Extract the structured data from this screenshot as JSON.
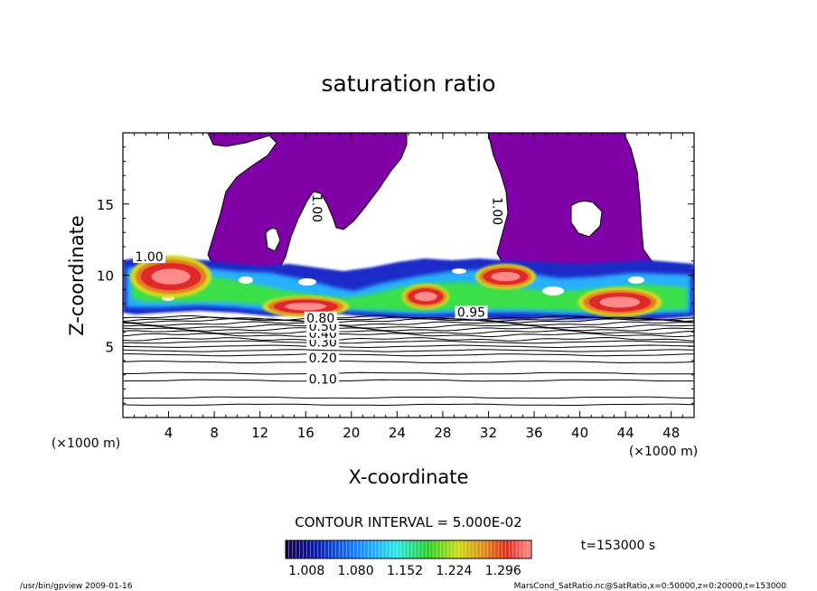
{
  "chart_data": {
    "type": "heatmap",
    "title": "saturation ratio",
    "xlabel": "X-coordinate",
    "ylabel": "Z-coordinate",
    "x_unit": "(×1000 m)",
    "y_unit": "(×1000 m)",
    "xlim": [
      0,
      50
    ],
    "ylim": [
      0,
      20
    ],
    "x_ticks": [
      4,
      8,
      12,
      16,
      20,
      24,
      28,
      32,
      36,
      40,
      44,
      48
    ],
    "y_ticks": [
      5,
      10,
      15
    ],
    "contour_interval_text": "CONTOUR INTERVAL = 5.000E-02",
    "time_text": "t=153000 s",
    "colorbar_labels": [
      "1.008",
      "1.080",
      "1.152",
      "1.224",
      "1.296"
    ],
    "contour_labels": [
      {
        "text": "0.10",
        "x": 17.5,
        "z": 2.7
      },
      {
        "text": "0.20",
        "x": 17.5,
        "z": 4.2
      },
      {
        "text": "0.30",
        "x": 17.5,
        "z": 5.3
      },
      {
        "text": "0.40",
        "x": 17.5,
        "z": 5.9
      },
      {
        "text": "0.50",
        "x": 17.5,
        "z": 6.4
      },
      {
        "text": "0.80",
        "x": 17.3,
        "z": 7.0
      },
      {
        "text": "1.00",
        "x": 17.0,
        "z": 14.7
      },
      {
        "text": "1.00",
        "x": 32.8,
        "z": 14.5
      },
      {
        "text": "1.00",
        "x": 2.3,
        "z": 11.3
      },
      {
        "text": "0.95",
        "x": 30.5,
        "z": 7.4
      }
    ],
    "background_contour_levels_z": [
      0.9,
      1.4,
      2.6,
      3.1,
      3.9,
      4.4,
      4.7,
      5.0,
      5.3,
      5.5,
      5.8,
      6.0,
      6.2,
      6.4,
      6.6,
      6.8,
      6.9,
      7.0
    ],
    "supersaturated_regions": [
      {
        "x": 4.2,
        "z": 9.9,
        "rx": 3.1,
        "rz": 1.0,
        "level": 1.26
      },
      {
        "x": 16.0,
        "z": 7.8,
        "rx": 3.3,
        "rz": 0.5,
        "level": 1.29
      },
      {
        "x": 26.5,
        "z": 8.5,
        "rx": 1.8,
        "rz": 0.6,
        "level": 1.24
      },
      {
        "x": 33.5,
        "z": 9.9,
        "rx": 2.3,
        "rz": 0.6,
        "level": 1.27
      },
      {
        "x": 43.5,
        "z": 8.1,
        "rx": 3.2,
        "rz": 0.7,
        "level": 1.3
      }
    ],
    "footer_left": "/usr/bin/gpview  2009-01-16",
    "footer_right": "MarsCond_SatRatio.nc@SatRatio,x=0:50000,z=0:20000,t=153000"
  }
}
